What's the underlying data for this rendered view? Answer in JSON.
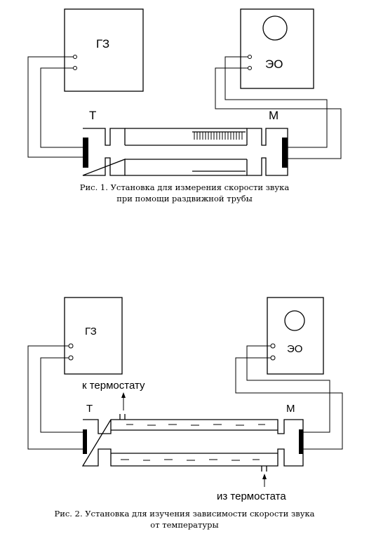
{
  "figure1": {
    "generator_label": "ГЗ",
    "oscilloscope_label": "ЭО",
    "telephone_label": "Т",
    "microphone_label": "М",
    "caption_line1": "Рис. 1. Установка для измерения скорости звука",
    "caption_line2": "при помощи раздвижной трубы"
  },
  "figure2": {
    "generator_label": "ГЗ",
    "oscilloscope_label": "ЭО",
    "telephone_label": "Т",
    "microphone_label": "М",
    "to_thermostat": "к термостату",
    "from_thermostat": "из термостата",
    "caption_line1": "Рис. 2. Установка для изучения зависимости скорости звука",
    "caption_line2": "от температуры"
  }
}
